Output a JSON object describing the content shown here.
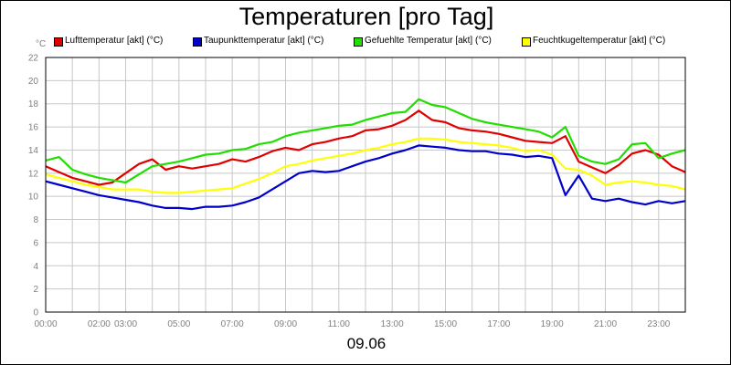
{
  "chart_data": {
    "type": "line",
    "title": "Temperaturen [pro Tag]",
    "date_label": "09.06",
    "y_unit": "°C",
    "ylim": [
      0,
      22
    ],
    "y_ticks": [
      "0",
      "2",
      "4",
      "6",
      "8",
      "10",
      "12",
      "14",
      "16",
      "18",
      "20",
      "22"
    ],
    "x_range_hours": [
      0,
      24
    ],
    "x_ticks": [
      {
        "hour": 0,
        "label": "00:00"
      },
      {
        "hour": 2,
        "label": "02:00"
      },
      {
        "hour": 3,
        "label": "03:00"
      },
      {
        "hour": 5,
        "label": "05:00"
      },
      {
        "hour": 7,
        "label": "07:00"
      },
      {
        "hour": 9,
        "label": "09:00"
      },
      {
        "hour": 11,
        "label": "11:00"
      },
      {
        "hour": 13,
        "label": "13:00"
      },
      {
        "hour": 15,
        "label": "15:00"
      },
      {
        "hour": 17,
        "label": "17:00"
      },
      {
        "hour": 19,
        "label": "19:00"
      },
      {
        "hour": 21,
        "label": "21:00"
      },
      {
        "hour": 23,
        "label": "23:00"
      }
    ],
    "grid": true,
    "x": [
      0,
      0.5,
      1,
      1.5,
      2,
      2.5,
      3,
      3.5,
      4,
      4.5,
      5,
      5.5,
      6,
      6.5,
      7,
      7.5,
      8,
      8.5,
      9,
      9.5,
      10,
      10.5,
      11,
      11.5,
      12,
      12.5,
      13,
      13.5,
      14,
      14.5,
      15,
      15.5,
      16,
      16.5,
      17,
      17.5,
      18,
      18.5,
      19,
      19.5,
      20,
      20.5,
      21,
      21.5,
      22,
      22.5,
      23,
      23.5,
      24
    ],
    "series": [
      {
        "name": "Lufttemperatur [akt] (°C)",
        "color": "#e00000",
        "values": [
          12.6,
          12.1,
          11.6,
          11.3,
          11.0,
          11.2,
          12.0,
          12.8,
          13.2,
          12.3,
          12.6,
          12.4,
          12.6,
          12.8,
          13.2,
          13.0,
          13.4,
          13.9,
          14.2,
          14.0,
          14.5,
          14.7,
          15.0,
          15.2,
          15.7,
          15.8,
          16.1,
          16.6,
          17.4,
          16.6,
          16.4,
          15.9,
          15.7,
          15.6,
          15.4,
          15.1,
          14.8,
          14.7,
          14.6,
          15.2,
          13.0,
          12.5,
          12.0,
          12.7,
          13.7,
          14.0,
          13.6,
          12.6,
          12.1
        ]
      },
      {
        "name": "Taupunkttemperatur [akt] (°C)",
        "color": "#0000cc",
        "values": [
          11.3,
          11.0,
          10.7,
          10.4,
          10.1,
          9.9,
          9.7,
          9.5,
          9.2,
          9.0,
          9.0,
          8.9,
          9.1,
          9.1,
          9.2,
          9.5,
          9.9,
          10.6,
          11.3,
          12.0,
          12.2,
          12.1,
          12.2,
          12.6,
          13.0,
          13.3,
          13.7,
          14.0,
          14.4,
          14.3,
          14.2,
          14.0,
          13.9,
          13.9,
          13.7,
          13.6,
          13.4,
          13.5,
          13.3,
          10.1,
          11.8,
          9.8,
          9.6,
          9.8,
          9.5,
          9.3,
          9.6,
          9.4,
          9.6
        ]
      },
      {
        "name": "Gefuehlte Temperatur [akt] (°C)",
        "color": "#22dd00",
        "values": [
          13.1,
          13.4,
          12.3,
          11.9,
          11.6,
          11.4,
          11.2,
          11.9,
          12.6,
          12.8,
          13.0,
          13.3,
          13.6,
          13.7,
          14.0,
          14.1,
          14.5,
          14.7,
          15.2,
          15.5,
          15.7,
          15.9,
          16.1,
          16.2,
          16.6,
          16.9,
          17.2,
          17.3,
          18.4,
          17.9,
          17.7,
          17.2,
          16.7,
          16.4,
          16.2,
          16.0,
          15.8,
          15.6,
          15.1,
          16.0,
          13.5,
          13.0,
          12.8,
          13.2,
          14.5,
          14.6,
          13.3,
          13.7,
          14.0
        ]
      },
      {
        "name": "Feuchtkugeltemperatur [akt] (°C)",
        "color": "#ffff00",
        "values": [
          11.9,
          11.6,
          11.3,
          11.0,
          10.8,
          10.6,
          10.6,
          10.6,
          10.4,
          10.3,
          10.3,
          10.4,
          10.5,
          10.6,
          10.7,
          11.1,
          11.5,
          12.0,
          12.6,
          12.8,
          13.1,
          13.3,
          13.5,
          13.7,
          14.0,
          14.2,
          14.5,
          14.7,
          15.0,
          15.0,
          14.9,
          14.7,
          14.6,
          14.5,
          14.4,
          14.2,
          13.9,
          14.0,
          13.6,
          12.4,
          12.3,
          11.8,
          11.0,
          11.2,
          11.3,
          11.2,
          11.0,
          10.9,
          10.6
        ]
      }
    ]
  }
}
